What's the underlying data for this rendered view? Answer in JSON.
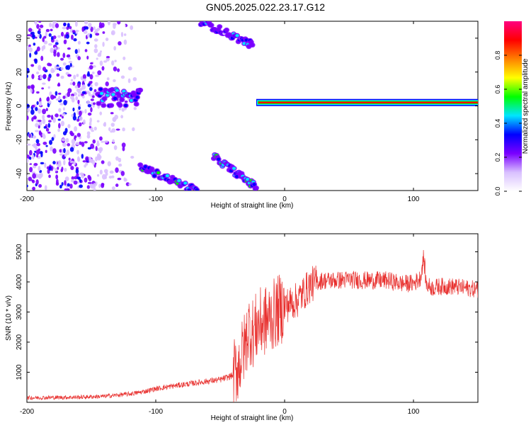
{
  "title": "GN05.2025.022.23.17.G12",
  "chart_data": [
    {
      "type": "heatmap",
      "xlabel": "Height of straight line (km)",
      "ylabel": "Frequency (Hz)",
      "xlim": [
        -200,
        150
      ],
      "ylim": [
        -50,
        50
      ],
      "xticks": [
        -200,
        -100,
        0,
        100
      ],
      "yticks": [
        -40,
        -20,
        0,
        20,
        40
      ],
      "colorbar": {
        "label": "Normalized spectral amplitude",
        "range": [
          0,
          1
        ],
        "ticks": [
          "0.0",
          "0.2",
          "0.4",
          "0.6",
          "0.8"
        ],
        "tick_values": [
          0.0,
          0.2,
          0.4,
          0.6,
          0.8
        ],
        "colors": [
          "#ffffff",
          "#d9c0ff",
          "#7a00ff",
          "#0000ff",
          "#00e5ff",
          "#00ff00",
          "#ffff00",
          "#ff8000",
          "#ff0000",
          "#ff0080"
        ]
      },
      "features": [
        {
          "name": "scatter",
          "x": [
            -200,
            -110
          ],
          "y": [
            -50,
            50
          ],
          "amplitude": 0.2
        },
        {
          "name": "blob",
          "x": [
            -145,
            -112
          ],
          "y": [
            0,
            10
          ],
          "amplitude": 0.35
        },
        {
          "name": "steady",
          "x": [
            -22,
            150
          ],
          "y": [
            2,
            2
          ],
          "amplitude": 0.9
        },
        {
          "name": "descending-upper",
          "x": [
            -65,
            -25
          ],
          "y": [
            36,
            50
          ],
          "amplitude": 0.3
        },
        {
          "name": "descending-lower-a",
          "x": [
            -112,
            -68
          ],
          "y": [
            -50,
            -36
          ],
          "amplitude": 0.4
        },
        {
          "name": "descending-lower-b",
          "x": [
            -55,
            -22
          ],
          "y": [
            -48,
            -30
          ],
          "amplitude": 0.4
        }
      ]
    },
    {
      "type": "line",
      "xlabel": "Height of straight line (km)",
      "ylabel": "SNR (10 * v/v)",
      "xlim": [
        -200,
        150
      ],
      "ylim": [
        0,
        5600
      ],
      "xticks": [
        -200,
        -100,
        0,
        100
      ],
      "yticks": [
        1000,
        2000,
        3000,
        4000,
        5000
      ],
      "color": "#e8302e",
      "x": [
        -200,
        -180,
        -160,
        -140,
        -120,
        -110,
        -100,
        -90,
        -80,
        -70,
        -60,
        -50,
        -45,
        -40,
        -35,
        -30,
        -28,
        -25,
        -20,
        -15,
        -10,
        -5,
        0,
        5,
        10,
        15,
        20,
        25,
        30,
        40,
        50,
        60,
        70,
        80,
        90,
        100,
        105,
        108,
        110,
        115,
        120,
        130,
        140,
        150
      ],
      "y": [
        150,
        160,
        170,
        200,
        280,
        350,
        450,
        520,
        580,
        640,
        700,
        750,
        820,
        900,
        1300,
        2000,
        2500,
        2300,
        2600,
        2700,
        2850,
        3050,
        3200,
        3300,
        3400,
        3650,
        3900,
        4000,
        4050,
        4050,
        4080,
        4050,
        4050,
        4050,
        3950,
        3950,
        4100,
        4800,
        3900,
        3800,
        3850,
        3850,
        3800,
        3750
      ]
    }
  ]
}
